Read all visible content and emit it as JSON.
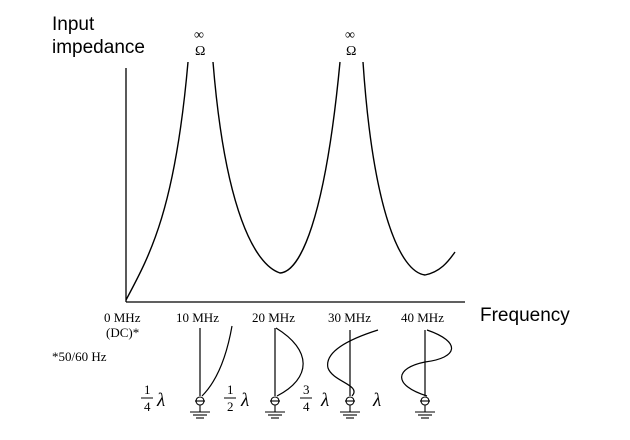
{
  "y_axis_label_line1": "Input",
  "y_axis_label_line2": "impedance",
  "x_axis_label": "Frequency",
  "infinity_symbol": "∞",
  "ohm_symbol": "Ω",
  "ticks": [
    "0 MHz",
    "10 MHz",
    "20 MHz",
    "30 MHz",
    "40 MHz"
  ],
  "tick_note": "(DC)*",
  "footnote": "*50/60 Hz",
  "wavelength_symbol": "λ",
  "fraction_one_quarter": {
    "num": "1",
    "den": "4"
  },
  "fraction_one_half": {
    "num": "1",
    "den": "2"
  },
  "fraction_three_quarter": {
    "num": "3",
    "den": "4"
  }
}
